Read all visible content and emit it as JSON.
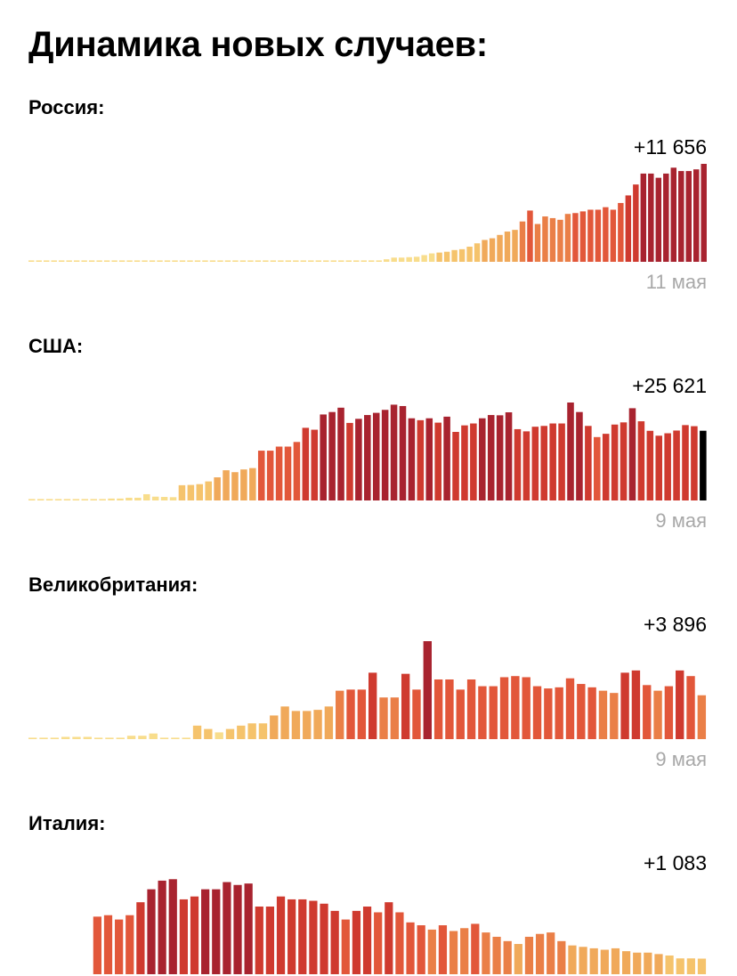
{
  "title": "Динамика новых случаев:",
  "colors": {
    "scale": [
      "#f8dd8c",
      "#f5c36c",
      "#f0a95a",
      "#ea7f47",
      "#e2573a",
      "#cf3a2f",
      "#a8232f"
    ],
    "last_highlight": "#000000",
    "date_label": "#a8a8a8"
  },
  "chart_data": [
    {
      "type": "bar",
      "country": "Россия:",
      "latest": "+11 656",
      "date": "11 мая",
      "max": 11656,
      "values": [
        10,
        10,
        10,
        10,
        10,
        10,
        10,
        10,
        10,
        10,
        10,
        10,
        10,
        10,
        10,
        10,
        10,
        10,
        10,
        10,
        10,
        10,
        10,
        10,
        10,
        10,
        10,
        10,
        10,
        10,
        10,
        10,
        10,
        10,
        10,
        10,
        10,
        10,
        10,
        10,
        10,
        10,
        10,
        10,
        50,
        100,
        150,
        300,
        500,
        500,
        550,
        600,
        800,
        1000,
        1100,
        1200,
        1400,
        1500,
        1800,
        2200,
        2600,
        2800,
        3200,
        3600,
        3800,
        4800,
        6100,
        4500,
        5400,
        5200,
        5000,
        5700,
        5800,
        6000,
        6200,
        6200,
        6500,
        6200,
        7000,
        7900,
        9200,
        10500,
        10500,
        10000,
        10500,
        11200,
        10800,
        10800,
        11000,
        11656
      ]
    },
    {
      "type": "bar",
      "country": "США:",
      "latest": "+25 621",
      "date": "9 мая",
      "max": 36000,
      "values": [
        500,
        500,
        500,
        500,
        500,
        500,
        500,
        500,
        500,
        700,
        700,
        1000,
        1000,
        2300,
        1400,
        1300,
        1200,
        5600,
        5700,
        6000,
        7000,
        8500,
        11100,
        10400,
        11400,
        11900,
        18300,
        18300,
        19800,
        19800,
        21500,
        26700,
        26000,
        31600,
        32500,
        34100,
        28500,
        30000,
        31400,
        32200,
        33300,
        35200,
        34700,
        30200,
        29500,
        30200,
        28600,
        30800,
        25200,
        27600,
        28300,
        30200,
        31400,
        31300,
        32400,
        26200,
        25400,
        27100,
        27400,
        28300,
        28300,
        36000,
        32500,
        27400,
        23300,
        24500,
        27900,
        28700,
        33900,
        29100,
        25600,
        23800,
        24700,
        25700,
        27700,
        27300,
        25621
      ]
    },
    {
      "type": "bar",
      "country": "Великобритания:",
      "latest": "+3 896",
      "date": "9 мая",
      "max": 8700,
      "values": [
        100,
        100,
        100,
        200,
        200,
        200,
        100,
        100,
        100,
        300,
        300,
        500,
        100,
        100,
        100,
        1200,
        900,
        600,
        900,
        1200,
        1400,
        1400,
        2100,
        2900,
        2500,
        2500,
        2600,
        2900,
        4300,
        4400,
        4400,
        5900,
        3700,
        3700,
        5800,
        4400,
        8700,
        5300,
        5300,
        4400,
        5300,
        4700,
        4700,
        5500,
        5600,
        5500,
        4700,
        4500,
        4600,
        5400,
        4900,
        4600,
        4300,
        4100,
        5900,
        6100,
        4800,
        4300,
        4700,
        6100,
        5600,
        3896
      ]
    },
    {
      "type": "bar",
      "country": "Италия:",
      "latest": "+1 083",
      "date": "",
      "max": 6557,
      "values": [
        0,
        0,
        0,
        0,
        0,
        0,
        4000,
        4100,
        3800,
        4100,
        5000,
        5900,
        6500,
        6600,
        5200,
        5400,
        5900,
        5900,
        6400,
        6200,
        6300,
        4700,
        4700,
        5400,
        5200,
        5200,
        5100,
        4900,
        4400,
        3800,
        4400,
        4700,
        4300,
        5000,
        4300,
        3600,
        3400,
        3100,
        3400,
        3000,
        3200,
        3500,
        2900,
        2600,
        2300,
        2100,
        2600,
        2800,
        2900,
        2300,
        2000,
        1900,
        1800,
        1700,
        1800,
        1600,
        1500,
        1500,
        1400,
        1300,
        1100,
        1100,
        1083
      ]
    }
  ]
}
